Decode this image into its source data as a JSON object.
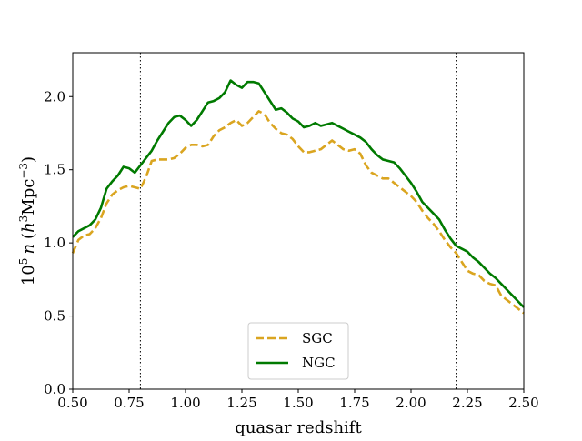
{
  "chart_data": {
    "type": "line",
    "title": "",
    "xlabel": "quasar redshift",
    "ylabel": "10^5 n (h^3 Mpc^-3)",
    "ylabel_parts": {
      "prefix": "10",
      "prefix_exp": "5",
      "var": "n",
      "open": "(",
      "h": "h",
      "h_exp": "3",
      "unit": "Mpc",
      "unit_exp": "−3",
      "close": ")"
    },
    "xlim": [
      0.5,
      2.5
    ],
    "ylim": [
      0.0,
      2.3
    ],
    "xticks": [
      0.5,
      0.75,
      1.0,
      1.25,
      1.5,
      1.75,
      2.0,
      2.25,
      2.5
    ],
    "xtick_labels": [
      "0.50",
      "0.75",
      "1.00",
      "1.25",
      "1.50",
      "1.75",
      "2.00",
      "2.25",
      "2.50"
    ],
    "yticks": [
      0.0,
      0.5,
      1.0,
      1.5,
      2.0
    ],
    "ytick_labels": [
      "0.0",
      "0.5",
      "1.0",
      "1.5",
      "2.0"
    ],
    "vlines": [
      0.8,
      2.2
    ],
    "grid": false,
    "legend_position": "lower center",
    "series": [
      {
        "name": "SGC",
        "color": "#daa520",
        "style": "dashed",
        "x": [
          0.5,
          0.525,
          0.55,
          0.575,
          0.6,
          0.625,
          0.65,
          0.675,
          0.7,
          0.725,
          0.75,
          0.775,
          0.8,
          0.825,
          0.85,
          0.875,
          0.9,
          0.925,
          0.95,
          0.975,
          1.0,
          1.025,
          1.05,
          1.075,
          1.1,
          1.125,
          1.15,
          1.175,
          1.2,
          1.225,
          1.25,
          1.275,
          1.3,
          1.325,
          1.35,
          1.375,
          1.4,
          1.425,
          1.45,
          1.475,
          1.5,
          1.525,
          1.55,
          1.575,
          1.6,
          1.625,
          1.65,
          1.675,
          1.7,
          1.725,
          1.75,
          1.775,
          1.8,
          1.825,
          1.85,
          1.875,
          1.9,
          1.925,
          1.95,
          1.975,
          2.0,
          2.025,
          2.05,
          2.075,
          2.1,
          2.125,
          2.15,
          2.175,
          2.2,
          2.225,
          2.25,
          2.275,
          2.3,
          2.325,
          2.35,
          2.375,
          2.4,
          2.425,
          2.45,
          2.475,
          2.5
        ],
        "y": [
          0.93,
          1.02,
          1.05,
          1.06,
          1.1,
          1.17,
          1.27,
          1.33,
          1.36,
          1.38,
          1.39,
          1.38,
          1.37,
          1.45,
          1.56,
          1.57,
          1.57,
          1.57,
          1.58,
          1.61,
          1.65,
          1.67,
          1.67,
          1.66,
          1.67,
          1.73,
          1.77,
          1.79,
          1.82,
          1.84,
          1.8,
          1.82,
          1.86,
          1.9,
          1.88,
          1.82,
          1.78,
          1.75,
          1.74,
          1.71,
          1.66,
          1.62,
          1.62,
          1.63,
          1.64,
          1.67,
          1.7,
          1.67,
          1.64,
          1.63,
          1.64,
          1.61,
          1.53,
          1.48,
          1.46,
          1.44,
          1.44,
          1.41,
          1.38,
          1.35,
          1.32,
          1.28,
          1.22,
          1.17,
          1.13,
          1.08,
          1.02,
          0.97,
          0.93,
          0.87,
          0.81,
          0.79,
          0.78,
          0.74,
          0.72,
          0.71,
          0.64,
          0.61,
          0.58,
          0.55,
          0.52
        ]
      },
      {
        "name": "NGC",
        "color": "#007a00",
        "style": "solid",
        "x": [
          0.5,
          0.525,
          0.55,
          0.575,
          0.6,
          0.625,
          0.65,
          0.675,
          0.7,
          0.725,
          0.75,
          0.775,
          0.8,
          0.825,
          0.85,
          0.875,
          0.9,
          0.925,
          0.95,
          0.975,
          1.0,
          1.025,
          1.05,
          1.075,
          1.1,
          1.125,
          1.15,
          1.175,
          1.2,
          1.225,
          1.25,
          1.275,
          1.3,
          1.325,
          1.35,
          1.375,
          1.4,
          1.425,
          1.45,
          1.475,
          1.5,
          1.525,
          1.55,
          1.575,
          1.6,
          1.625,
          1.65,
          1.675,
          1.7,
          1.725,
          1.75,
          1.775,
          1.8,
          1.825,
          1.85,
          1.875,
          1.9,
          1.925,
          1.95,
          1.975,
          2.0,
          2.025,
          2.05,
          2.075,
          2.1,
          2.125,
          2.15,
          2.175,
          2.2,
          2.225,
          2.25,
          2.275,
          2.3,
          2.325,
          2.35,
          2.375,
          2.4,
          2.425,
          2.45,
          2.475,
          2.5
        ],
        "y": [
          1.04,
          1.08,
          1.1,
          1.12,
          1.16,
          1.24,
          1.37,
          1.42,
          1.46,
          1.52,
          1.51,
          1.48,
          1.53,
          1.58,
          1.63,
          1.7,
          1.76,
          1.82,
          1.86,
          1.87,
          1.84,
          1.8,
          1.84,
          1.9,
          1.96,
          1.97,
          1.99,
          2.03,
          2.11,
          2.08,
          2.06,
          2.1,
          2.1,
          2.09,
          2.03,
          1.97,
          1.91,
          1.92,
          1.89,
          1.85,
          1.83,
          1.79,
          1.8,
          1.82,
          1.8,
          1.81,
          1.82,
          1.8,
          1.78,
          1.76,
          1.74,
          1.72,
          1.69,
          1.64,
          1.6,
          1.57,
          1.56,
          1.55,
          1.51,
          1.46,
          1.41,
          1.35,
          1.28,
          1.24,
          1.2,
          1.16,
          1.09,
          1.03,
          0.98,
          0.96,
          0.94,
          0.9,
          0.87,
          0.83,
          0.79,
          0.76,
          0.72,
          0.68,
          0.64,
          0.6,
          0.56
        ]
      }
    ]
  }
}
